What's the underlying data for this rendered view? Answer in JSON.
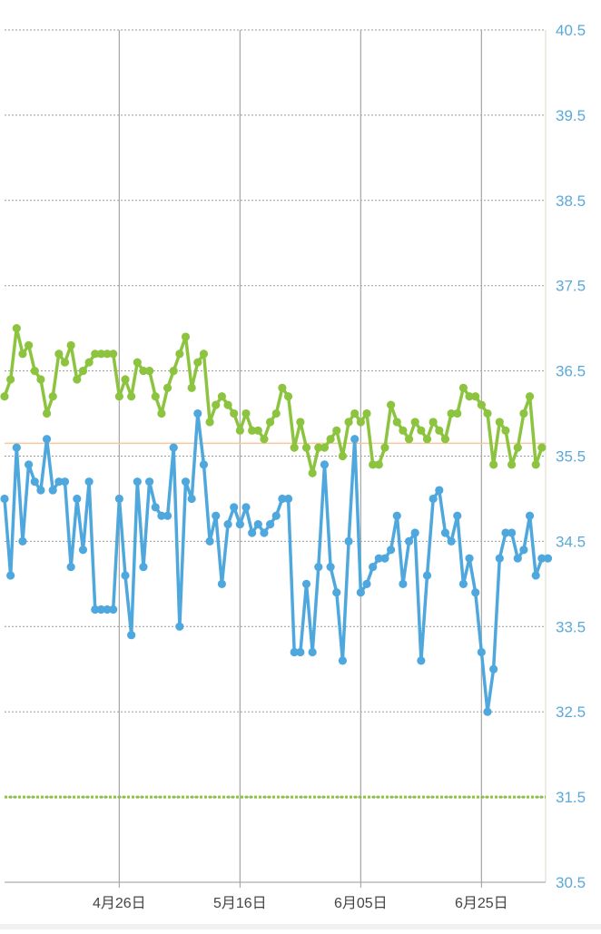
{
  "chart_data": {
    "type": "line",
    "y_ticks": [
      "40.5",
      "39.5",
      "38.5",
      "37.5",
      "36.5",
      "35.5",
      "34.5",
      "33.5",
      "32.5",
      "31.5",
      "30.5"
    ],
    "x_ticks": [
      {
        "label": "4月26日",
        "index": 19
      },
      {
        "label": "5月16日",
        "index": 39
      },
      {
        "label": "6月05日",
        "index": 59
      },
      {
        "label": "6月25日",
        "index": 79
      }
    ],
    "ylim": [
      30.5,
      40.5
    ],
    "reference_lines": [
      {
        "value": 35.65,
        "color": "#f5c9a0"
      },
      {
        "value": 31.5,
        "color": "#8cc43f",
        "style": "dotted"
      }
    ],
    "series": [
      {
        "color": "#8cc43f",
        "values": [
          36.2,
          36.4,
          37.0,
          36.7,
          36.8,
          36.5,
          36.4,
          36.0,
          36.2,
          36.7,
          36.6,
          36.8,
          36.4,
          36.5,
          36.6,
          36.7,
          36.7,
          36.7,
          36.7,
          36.2,
          36.4,
          36.2,
          36.6,
          36.5,
          36.5,
          36.2,
          36.0,
          36.3,
          36.5,
          36.7,
          36.9,
          36.3,
          36.6,
          36.7,
          35.9,
          36.1,
          36.2,
          36.1,
          36.0,
          35.8,
          36.0,
          35.8,
          35.8,
          35.7,
          35.9,
          36.0,
          36.3,
          36.2,
          35.6,
          35.9,
          35.6,
          35.3,
          35.6,
          35.6,
          35.7,
          35.8,
          35.5,
          35.9,
          36.0,
          35.9,
          36.0,
          35.4,
          35.4,
          35.6,
          36.1,
          35.9,
          35.8,
          35.7,
          35.9,
          35.8,
          35.7,
          35.9,
          35.8,
          35.7,
          36.0,
          36.0,
          36.3,
          36.2,
          36.2,
          36.1,
          36.0,
          35.4,
          35.9,
          35.8,
          35.4,
          35.6,
          36.0,
          36.2,
          35.4,
          35.6
        ]
      },
      {
        "color": "#4fa8dd",
        "values": [
          35.0,
          34.1,
          35.6,
          34.5,
          35.4,
          35.2,
          35.1,
          35.7,
          35.1,
          35.2,
          35.2,
          34.2,
          35.0,
          34.4,
          35.2,
          33.7,
          33.7,
          33.7,
          33.7,
          35.0,
          34.1,
          33.4,
          35.2,
          34.2,
          35.2,
          34.9,
          34.8,
          34.8,
          35.6,
          33.5,
          35.2,
          35.0,
          36.0,
          35.4,
          34.5,
          34.8,
          34.0,
          34.7,
          34.9,
          34.7,
          34.9,
          34.6,
          34.7,
          34.6,
          34.7,
          34.8,
          35.0,
          35.0,
          33.2,
          33.2,
          34.0,
          33.2,
          34.2,
          35.4,
          34.2,
          33.9,
          33.1,
          34.5,
          35.7,
          33.9,
          34.0,
          34.2,
          34.3,
          34.3,
          34.4,
          34.8,
          34.0,
          34.5,
          34.6,
          33.1,
          34.1,
          35.0,
          35.1,
          34.6,
          34.5,
          34.8,
          34.0,
          34.3,
          33.9,
          33.2,
          32.5,
          33.0,
          34.3,
          34.6,
          34.6,
          34.3,
          34.4,
          34.8,
          34.1,
          34.3,
          34.3
        ]
      }
    ],
    "grid": true
  }
}
